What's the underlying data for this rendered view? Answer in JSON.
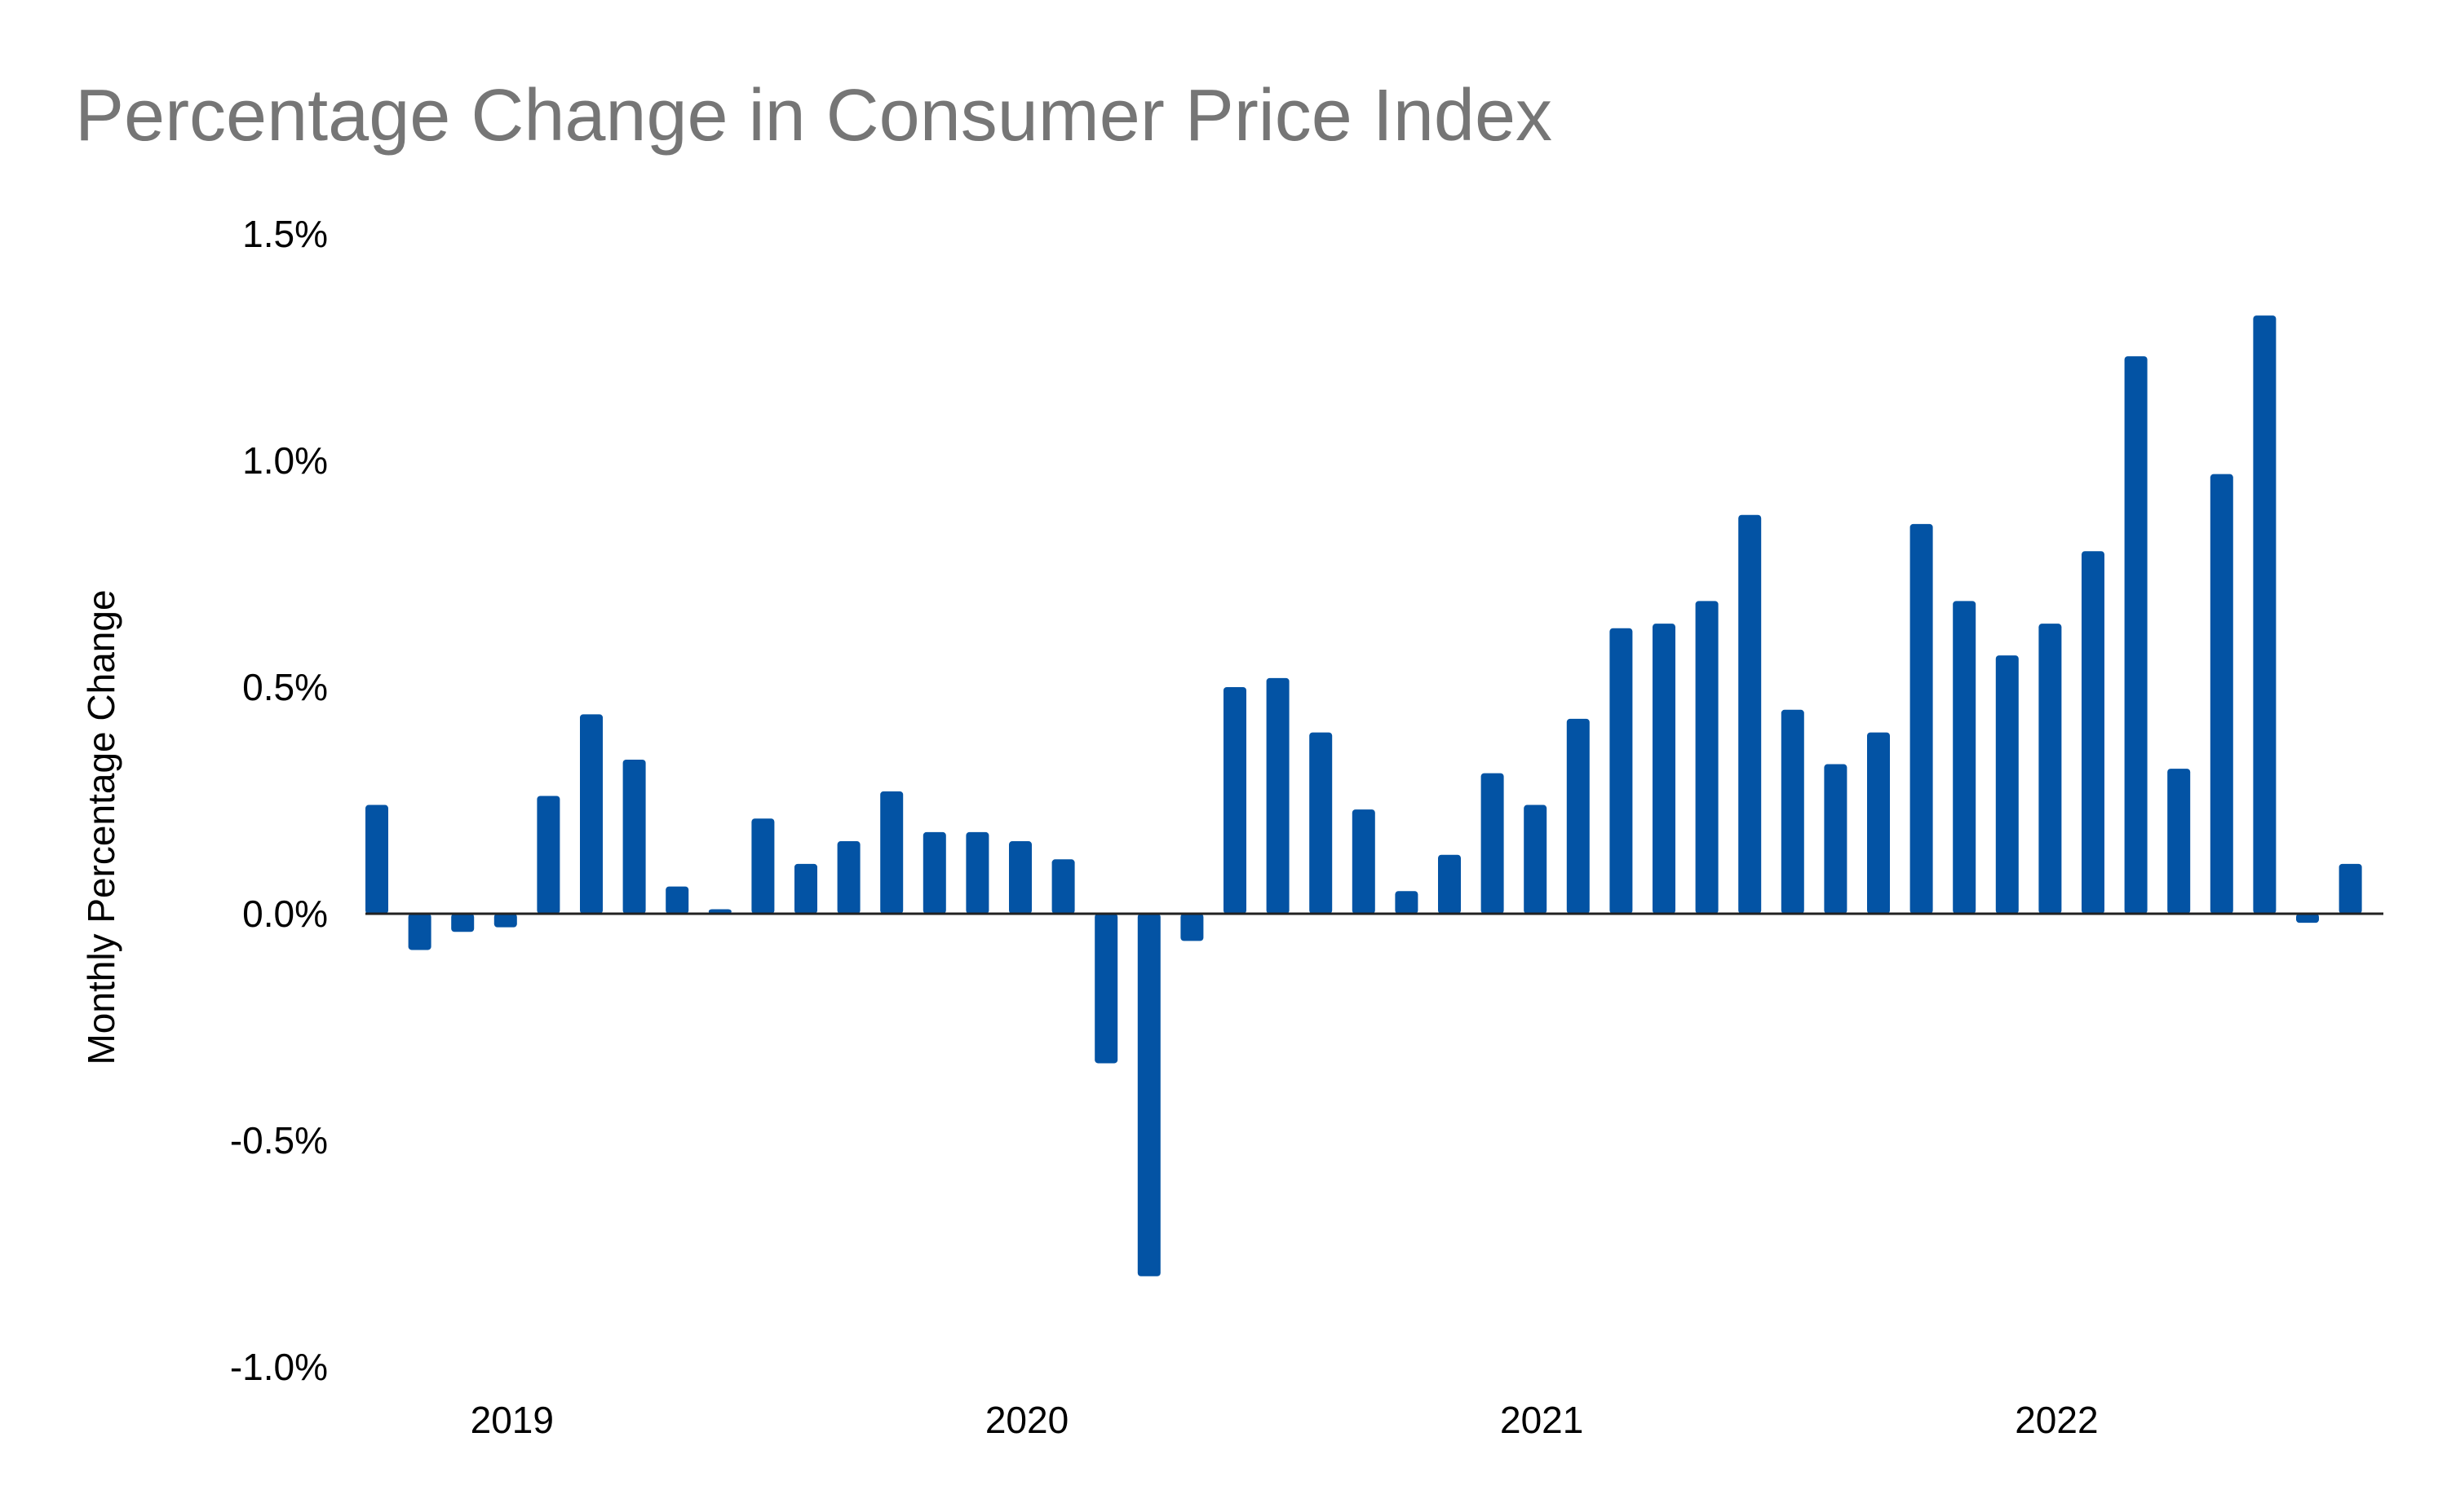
{
  "chart_data": {
    "type": "bar",
    "title": "Percentage Change in Consumer Price Index",
    "xlabel": "",
    "ylabel": "Monthly Percentage Change",
    "ylim": [
      -1.0,
      1.5
    ],
    "y_ticks": [
      -1.0,
      -0.5,
      0.0,
      0.5,
      1.0,
      1.5
    ],
    "y_tick_labels": [
      "-1.0%",
      "-0.5%",
      "0.0%",
      "0.5%",
      "1.0%",
      "1.5%"
    ],
    "x_tick_labels": [
      "2019",
      "2020",
      "2021",
      "2022"
    ],
    "x_tick_category_index": [
      3,
      15,
      27,
      39
    ],
    "grid": false,
    "bar_color": "#0353a4",
    "categories": [
      "2018-10",
      "2018-11",
      "2018-12",
      "2019-01",
      "2019-02",
      "2019-03",
      "2019-04",
      "2019-05",
      "2019-06",
      "2019-07",
      "2019-08",
      "2019-09",
      "2019-10",
      "2019-11",
      "2019-12",
      "2020-01",
      "2020-02",
      "2020-03",
      "2020-04",
      "2020-05",
      "2020-06",
      "2020-07",
      "2020-08",
      "2020-09",
      "2020-10",
      "2020-11",
      "2020-12",
      "2021-01",
      "2021-02",
      "2021-03",
      "2021-04",
      "2021-05",
      "2021-06",
      "2021-07",
      "2021-08",
      "2021-09",
      "2021-10",
      "2021-11",
      "2021-12",
      "2022-01",
      "2022-02",
      "2022-03",
      "2022-04",
      "2022-05",
      "2022-06",
      "2022-07",
      "2022-08"
    ],
    "values": [
      0.24,
      -0.08,
      -0.04,
      -0.03,
      0.26,
      0.44,
      0.34,
      0.06,
      0.01,
      0.21,
      0.11,
      0.16,
      0.27,
      0.18,
      0.18,
      0.16,
      0.12,
      -0.33,
      -0.8,
      -0.06,
      0.5,
      0.52,
      0.4,
      0.23,
      0.05,
      0.13,
      0.31,
      0.24,
      0.43,
      0.63,
      0.64,
      0.69,
      0.88,
      0.45,
      0.33,
      0.4,
      0.86,
      0.69,
      0.57,
      0.64,
      0.8,
      1.23,
      0.32,
      0.97,
      1.32,
      -0.02,
      0.11
    ]
  }
}
